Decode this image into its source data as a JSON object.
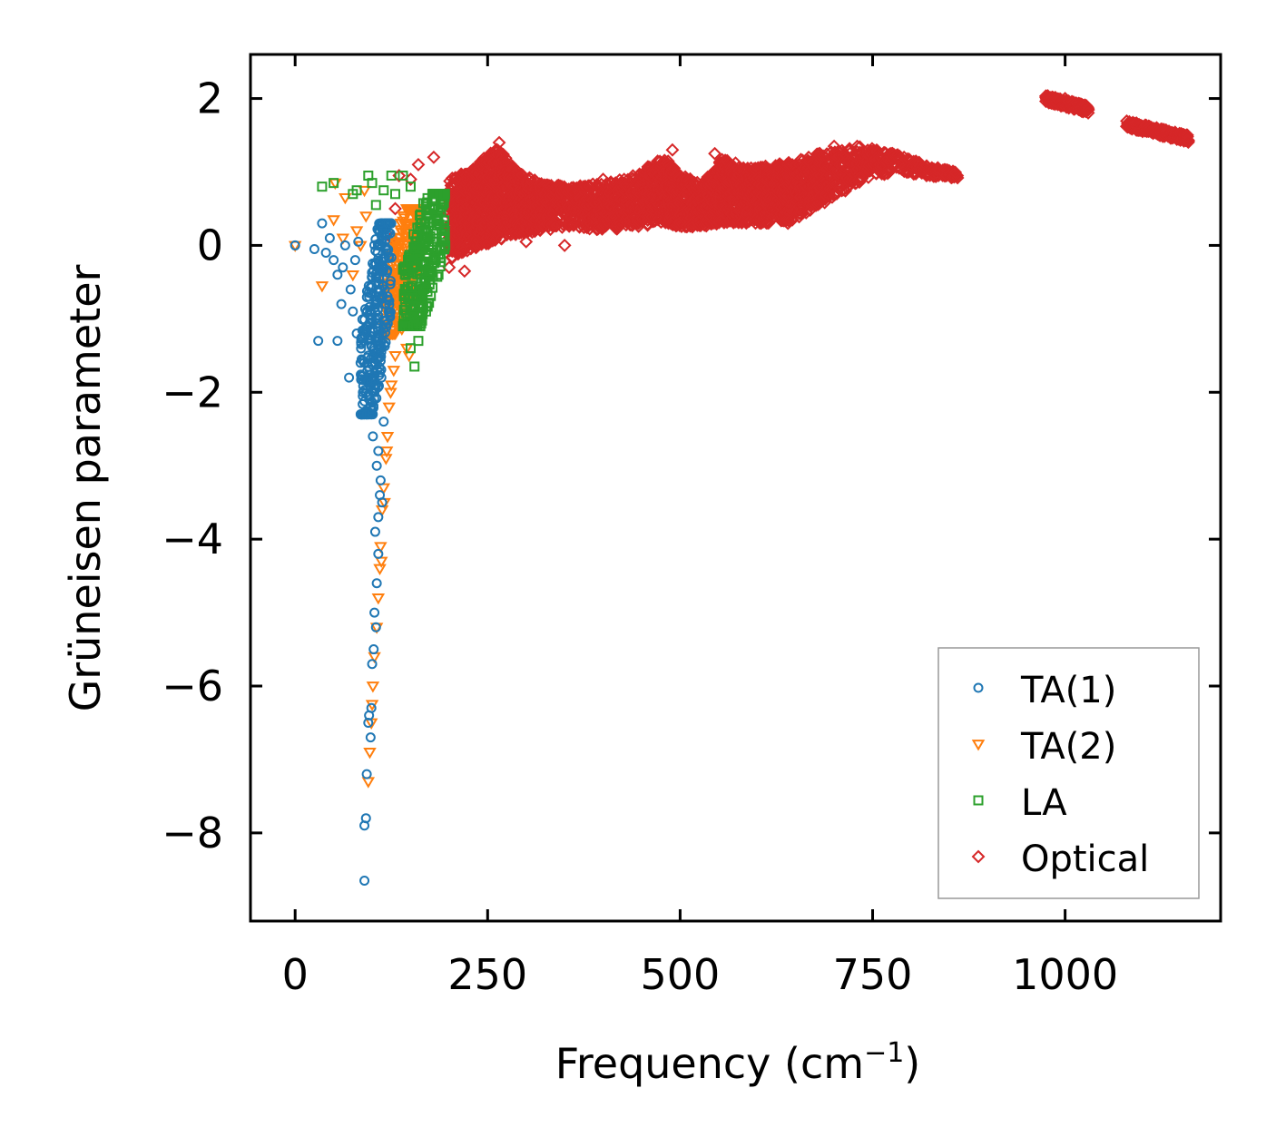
{
  "chart_data": {
    "type": "scatter",
    "title": "",
    "xlabel": "Frequency (cm",
    "xlabel_sup": "−1",
    "xlabel_end": ")",
    "ylabel": "Grüneisen parameter",
    "xlim": [
      -58,
      1202
    ],
    "ylim": [
      -9.2,
      2.6
    ],
    "x_ticks": [
      0,
      250,
      500,
      750,
      1000
    ],
    "x_tick_labels": [
      "0",
      "250",
      "500",
      "750",
      "1000"
    ],
    "y_ticks": [
      2,
      0,
      -2,
      -4,
      -6,
      -8
    ],
    "y_tick_labels": [
      "2",
      "0",
      "−2",
      "−4",
      "−6",
      "−8"
    ],
    "legend_position": "lower-right",
    "grid": false,
    "series": [
      {
        "name": "TA(1)",
        "marker": "circle",
        "color": "#1f77b4",
        "points": [
          [
            0,
            0
          ],
          [
            25,
            -0.05
          ],
          [
            30,
            -1.3
          ],
          [
            35,
            0.3
          ],
          [
            40,
            -0.1
          ],
          [
            45,
            0.1
          ],
          [
            50,
            -0.2
          ],
          [
            55,
            -0.4
          ],
          [
            55,
            -1.3
          ],
          [
            60,
            -0.8
          ],
          [
            62,
            -0.3
          ],
          [
            65,
            0.0
          ],
          [
            70,
            -1.8
          ],
          [
            72,
            -0.6
          ],
          [
            75,
            -0.9
          ],
          [
            78,
            -0.2
          ],
          [
            80,
            -1.2
          ],
          [
            82,
            0.05
          ],
          [
            85,
            -1.6
          ],
          [
            88,
            -2.0
          ],
          [
            90,
            -8.65
          ],
          [
            90,
            -7.9
          ],
          [
            92,
            -7.8
          ],
          [
            93,
            -7.2
          ],
          [
            95,
            -6.5
          ],
          [
            96,
            -6.4
          ],
          [
            98,
            -6.7
          ],
          [
            99,
            -6.3
          ],
          [
            100,
            -5.7
          ],
          [
            101,
            -2.6
          ],
          [
            102,
            -5.5
          ],
          [
            103,
            -5.0
          ],
          [
            104,
            -3.9
          ],
          [
            105,
            -5.2
          ],
          [
            106,
            -4.6
          ],
          [
            106,
            -3.0
          ],
          [
            108,
            -4.2
          ],
          [
            108,
            -3.7
          ],
          [
            110,
            -3.4
          ],
          [
            111,
            -3.2
          ],
          [
            113,
            -3.5
          ],
          [
            115,
            -2.4
          ],
          [
            98,
            -2.2
          ],
          [
            103,
            -2.0
          ],
          [
            95,
            -1.5
          ],
          [
            100,
            -1.0
          ],
          [
            105,
            -0.5
          ],
          [
            110,
            0.2
          ],
          [
            115,
            -0.3
          ],
          [
            120,
            0.3
          ],
          [
            112,
            -1.8
          ],
          [
            118,
            -0.8
          ],
          [
            108,
            -2.8
          ],
          [
            102,
            -1.4
          ],
          [
            96,
            -0.7
          ]
        ],
        "cluster": {
          "x": [
            85,
            125
          ],
          "y": [
            -2.3,
            0.3
          ],
          "count": 320
        }
      },
      {
        "name": "TA(2)",
        "marker": "triangle-down",
        "color": "#ff7f0e",
        "points": [
          [
            0,
            0
          ],
          [
            35,
            -0.55
          ],
          [
            50,
            0.35
          ],
          [
            52,
            0.85
          ],
          [
            62,
            0.1
          ],
          [
            65,
            0.65
          ],
          [
            75,
            -0.4
          ],
          [
            80,
            0.2
          ],
          [
            85,
            0.0
          ],
          [
            90,
            0.75
          ],
          [
            92,
            0.4
          ],
          [
            95,
            -7.3
          ],
          [
            97,
            -6.9
          ],
          [
            99,
            -6.5
          ],
          [
            100,
            -6.25
          ],
          [
            101,
            -6.0
          ],
          [
            103,
            -5.6
          ],
          [
            106,
            -5.2
          ],
          [
            108,
            -4.8
          ],
          [
            110,
            -4.4
          ],
          [
            111,
            -4.1
          ],
          [
            113,
            -3.6
          ],
          [
            115,
            -3.3
          ],
          [
            118,
            -2.9
          ],
          [
            120,
            -2.6
          ],
          [
            122,
            -2.2
          ],
          [
            125,
            -1.9
          ],
          [
            130,
            -1.5
          ],
          [
            135,
            -1.1
          ],
          [
            140,
            -0.7
          ],
          [
            145,
            -1.4
          ],
          [
            148,
            -1.5
          ],
          [
            150,
            -0.8
          ],
          [
            155,
            -0.3
          ],
          [
            112,
            -4.3
          ],
          [
            116,
            -3.5
          ],
          [
            119,
            -2.8
          ],
          [
            124,
            -2.0
          ],
          [
            128,
            -1.7
          ]
        ],
        "cluster": {
          "x": [
            115,
            165
          ],
          "y": [
            -1.2,
            0.5
          ],
          "count": 260
        }
      },
      {
        "name": "LA",
        "marker": "square",
        "color": "#2ca02c",
        "points": [
          [
            35,
            0.8
          ],
          [
            50,
            0.85
          ],
          [
            75,
            0.7
          ],
          [
            80,
            0.75
          ],
          [
            95,
            0.95
          ],
          [
            100,
            0.85
          ],
          [
            105,
            0.55
          ],
          [
            115,
            0.75
          ],
          [
            125,
            0.95
          ],
          [
            130,
            0.7
          ],
          [
            140,
            0.95
          ],
          [
            150,
            0.8
          ],
          [
            145,
            -1.1
          ],
          [
            150,
            -1.4
          ],
          [
            155,
            -1.65
          ],
          [
            160,
            -1.3
          ],
          [
            165,
            -0.6
          ],
          [
            170,
            -0.9
          ],
          [
            175,
            -0.4
          ],
          [
            180,
            -0.1
          ],
          [
            185,
            0.3
          ],
          [
            190,
            0.55
          ],
          [
            195,
            0.0
          ]
        ],
        "cluster": {
          "x": [
            140,
            195
          ],
          "y": [
            -1.1,
            0.7
          ],
          "count": 300
        }
      },
      {
        "name": "Optical",
        "marker": "diamond",
        "color": "#d62728",
        "points": [
          [
            120,
            -1.0
          ],
          [
            125,
            0.1
          ],
          [
            130,
            0.5
          ],
          [
            135,
            0.95
          ],
          [
            140,
            -0.7
          ],
          [
            150,
            0.9
          ],
          [
            160,
            1.1
          ],
          [
            180,
            1.2
          ],
          [
            200,
            -0.3
          ],
          [
            220,
            -0.35
          ],
          [
            250,
            0.2
          ],
          [
            265,
            1.4
          ],
          [
            300,
            0.05
          ],
          [
            350,
            0.0
          ],
          [
            400,
            0.9
          ],
          [
            490,
            1.3
          ],
          [
            545,
            1.25
          ],
          [
            610,
            0.35
          ],
          [
            640,
            0.3
          ],
          [
            680,
            0.6
          ],
          [
            700,
            1.35
          ],
          [
            730,
            1.35
          ],
          [
            735,
            0.9
          ],
          [
            820,
            0.95
          ],
          [
            860,
            0.95
          ],
          [
            1000,
            2.0
          ],
          [
            1150,
            1.45
          ]
        ],
        "band": [
          [
            200,
            -0.2,
            0.9
          ],
          [
            230,
            -0.05,
            1.05
          ],
          [
            260,
            0.05,
            1.35
          ],
          [
            290,
            0.15,
            1.0
          ],
          [
            320,
            0.2,
            0.85
          ],
          [
            360,
            0.25,
            0.8
          ],
          [
            400,
            0.2,
            0.85
          ],
          [
            440,
            0.25,
            0.95
          ],
          [
            480,
            0.3,
            1.2
          ],
          [
            500,
            0.25,
            0.95
          ],
          [
            530,
            0.25,
            0.85
          ],
          [
            555,
            0.3,
            1.2
          ],
          [
            590,
            0.3,
            1.05
          ],
          [
            620,
            0.3,
            1.1
          ],
          [
            650,
            0.35,
            1.15
          ],
          [
            690,
            0.6,
            1.3
          ],
          [
            740,
            0.9,
            1.35
          ],
          [
            780,
            1.0,
            1.25
          ],
          [
            820,
            0.95,
            1.1
          ],
          [
            860,
            0.9,
            1.0
          ]
        ],
        "segments": [
          {
            "x": [
              975,
              1030
            ],
            "y_start": 2.0,
            "y_end": 1.85,
            "spread": 0.05
          },
          {
            "x": [
              1080,
              1160
            ],
            "y_start": 1.65,
            "y_end": 1.45,
            "spread": 0.05
          }
        ]
      }
    ]
  }
}
